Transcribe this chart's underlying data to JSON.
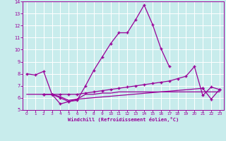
{
  "xlabel": "Windchill (Refroidissement éolien,°C)",
  "bg_color": "#c8ecec",
  "line_color": "#990099",
  "grid_color": "#ffffff",
  "ylim": [
    5,
    14
  ],
  "xlim": [
    -0.5,
    23.5
  ],
  "yticks": [
    5,
    6,
    7,
    8,
    9,
    10,
    11,
    12,
    13,
    14
  ],
  "xticks": [
    0,
    1,
    2,
    3,
    4,
    5,
    6,
    7,
    8,
    9,
    10,
    11,
    12,
    13,
    14,
    15,
    16,
    17,
    18,
    19,
    20,
    21,
    22,
    23
  ],
  "line1_x": [
    0,
    1,
    2,
    3,
    4,
    5,
    6,
    7,
    8,
    9,
    10,
    11,
    12,
    13,
    14,
    15,
    16,
    17
  ],
  "line1_y": [
    8.0,
    7.9,
    8.2,
    6.3,
    6.0,
    5.7,
    5.8,
    7.0,
    8.3,
    9.4,
    10.5,
    11.4,
    11.4,
    12.5,
    13.7,
    12.1,
    10.1,
    8.6
  ],
  "line2_x": [
    2,
    3,
    4,
    5,
    6,
    7,
    8,
    9,
    10,
    11,
    12,
    13,
    14,
    15,
    16,
    17,
    18,
    19,
    20,
    21,
    22,
    23
  ],
  "line2_y": [
    6.3,
    6.3,
    6.3,
    6.3,
    6.3,
    6.4,
    6.5,
    6.6,
    6.7,
    6.8,
    6.9,
    7.0,
    7.1,
    7.2,
    7.3,
    7.4,
    7.6,
    7.8,
    8.6,
    6.2,
    6.9,
    6.7
  ],
  "line3_x": [
    0,
    1,
    2,
    3,
    4,
    5,
    6,
    7,
    8,
    9,
    10,
    11,
    12,
    13,
    14,
    15,
    16,
    17,
    18,
    19,
    20,
    21,
    22,
    23
  ],
  "line3_y": [
    6.3,
    6.3,
    6.3,
    6.3,
    6.1,
    5.8,
    5.9,
    6.3,
    6.3,
    6.4,
    6.4,
    6.5,
    6.5,
    6.5,
    6.5,
    6.5,
    6.5,
    6.5,
    6.5,
    6.5,
    6.5,
    6.5,
    6.5,
    6.5
  ],
  "line4_x": [
    2,
    3,
    4,
    5,
    6,
    21,
    22,
    23
  ],
  "line4_y": [
    6.3,
    6.3,
    5.5,
    5.7,
    5.9,
    6.8,
    5.9,
    6.7
  ]
}
